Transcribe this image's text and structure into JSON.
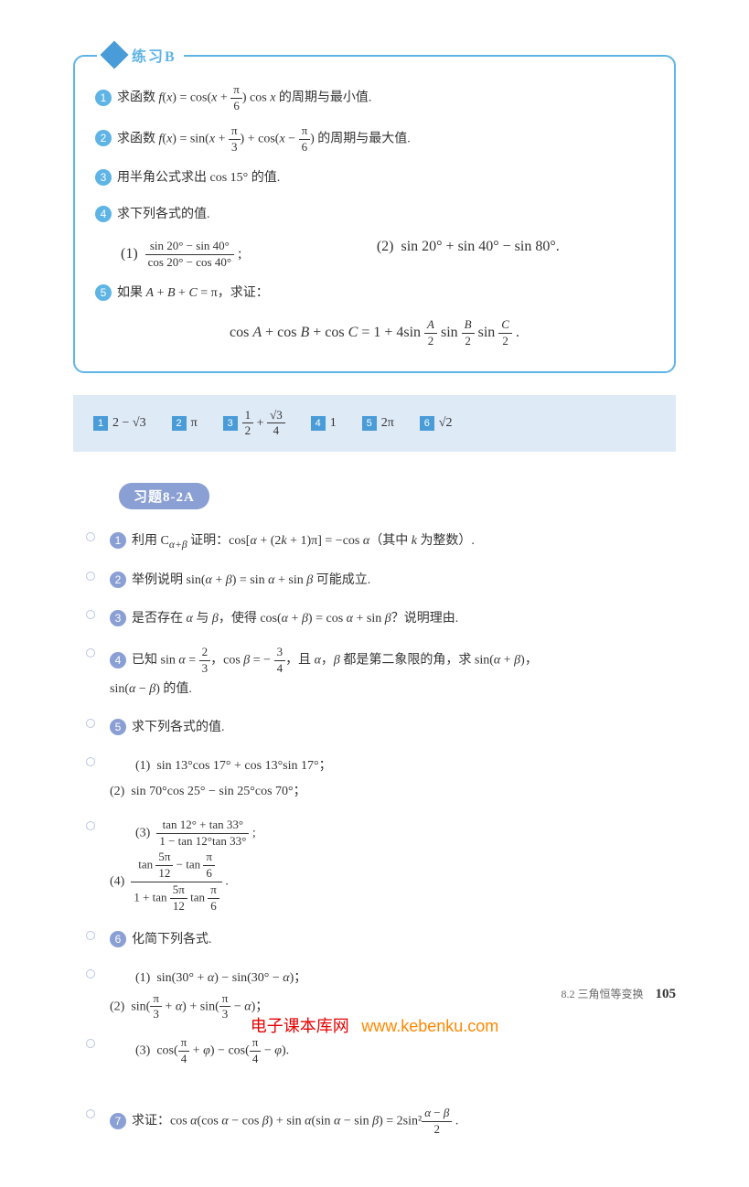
{
  "practiceB": {
    "title": "练习B",
    "items": [
      {
        "num": "1",
        "html": "求函数 <span class='math'>f</span>(<span class='math'>x</span>) = cos(<span class='math'>x</span> + <span class='frac'><span class='num'>π</span><span class='den'>6</span></span>) cos <span class='math'>x</span> 的周期与最小值."
      },
      {
        "num": "2",
        "html": "求函数 <span class='math'>f</span>(<span class='math'>x</span>) = sin(<span class='math'>x</span> + <span class='frac'><span class='num'>π</span><span class='den'>3</span></span>) + cos(<span class='math'>x</span> − <span class='frac'><span class='num'>π</span><span class='den'>6</span></span>) 的周期与最大值."
      },
      {
        "num": "3",
        "html": "用半角公式求出 cos 15° 的值."
      },
      {
        "num": "4",
        "html": "求下列各式的值.",
        "sub": [
          "(1) &nbsp;<span class='frac'><span class='num'>sin 20° − sin 40°</span><span class='den'>cos 20° − cos 40°</span></span> ;",
          "(2) &nbsp;sin 20° + sin 40° − sin 80°."
        ]
      },
      {
        "num": "5",
        "html": "如果 <span class='math'>A</span> + <span class='math'>B</span> + <span class='math'>C</span> = π，求证：",
        "center": "cos <span class='math'>A</span> + cos <span class='math'>B</span> + cos <span class='math'>C</span> = 1 + 4sin <span class='frac'><span class='num'><span class='math'>A</span></span><span class='den'>2</span></span> sin <span class='frac'><span class='num'><span class='math'>B</span></span><span class='den'>2</span></span> sin <span class='frac'><span class='num'><span class='math'>C</span></span><span class='den'>2</span></span> ."
      }
    ]
  },
  "answers": {
    "items": [
      {
        "num": "1",
        "html": "2 − <span class='sqrt'>√3</span>"
      },
      {
        "num": "2",
        "html": "π"
      },
      {
        "num": "3",
        "html": "<span class='frac'><span class='num'>1</span><span class='den'>2</span></span> + <span class='frac'><span class='num'><span class='sqrt'>√3</span></span><span class='den'>4</span></span>"
      },
      {
        "num": "4",
        "html": "1"
      },
      {
        "num": "5",
        "html": "2π"
      },
      {
        "num": "6",
        "html": "<span class='sqrt'>√2</span>"
      }
    ]
  },
  "exercise": {
    "title": "习题8-2A",
    "items": [
      {
        "num": "1",
        "html": "利用 C<sub><span class='math'>α+β</span></sub> 证明：cos[<span class='math'>α</span> + (2<span class='math'>k</span> + 1)π] = −cos <span class='math'>α</span>（其中 <span class='math'>k</span> 为整数）."
      },
      {
        "num": "2",
        "html": "举例说明 sin(<span class='math'>α</span> + <span class='math'>β</span>) = sin <span class='math'>α</span> + sin <span class='math'>β</span> 可能成立."
      },
      {
        "num": "3",
        "html": "是否存在 <span class='math'>α</span> 与 <span class='math'>β</span>，使得 cos(<span class='math'>α</span> + <span class='math'>β</span>) = cos <span class='math'>α</span> + sin <span class='math'>β</span>？说明理由."
      },
      {
        "num": "4",
        "html": "已知 sin <span class='math'>α</span> = <span class='frac'><span class='num'>2</span><span class='den'>3</span></span>，cos <span class='math'>β</span> = − <span class='frac'><span class='num'>3</span><span class='den'>4</span></span>，且 <span class='math'>α</span>，<span class='math'>β</span> 都是第二象限的角，求 sin(<span class='math'>α</span> + <span class='math'>β</span>)，<br><span style='margin-left:0'>sin(<span class='math'>α</span> − <span class='math'>β</span>) 的值.</span>"
      },
      {
        "num": "5",
        "html": "求下列各式的值.",
        "sub2": [
          {
            "l": "(1) &nbsp;sin 13°cos 17° + cos 13°sin 17°；",
            "r": "(2) &nbsp;sin 70°cos 25° − sin 25°cos 70°；"
          },
          {
            "l": "(3) &nbsp;<span class='frac'><span class='num'>tan 12° + tan 33°</span><span class='den'>1 − tan 12°tan 33°</span></span> ;",
            "r": "(4) &nbsp;<span class='frac'><span class='num'>tan <span class='frac'><span class='num'>5π</span><span class='den'>12</span></span> − tan <span class='frac'><span class='num'>π</span><span class='den'>6</span></span></span><span class='den'>1 + tan <span class='frac'><span class='num'>5π</span><span class='den'>12</span></span> tan <span class='frac'><span class='num'>π</span><span class='den'>6</span></span></span></span> ."
          }
        ]
      },
      {
        "num": "6",
        "html": "化简下列各式.",
        "sub2": [
          {
            "l": "(1) &nbsp;sin(30° + <span class='math'>α</span>) − sin(30° − <span class='math'>α</span>)；",
            "r": "(2) &nbsp;sin(<span class='frac'><span class='num'>π</span><span class='den'>3</span></span> + <span class='math'>α</span>) + sin(<span class='frac'><span class='num'>π</span><span class='den'>3</span></span> − <span class='math'>α</span>)；"
          },
          {
            "l": "(3) &nbsp;cos(<span class='frac'><span class='num'>π</span><span class='den'>4</span></span> + <span class='math'>φ</span>) − cos(<span class='frac'><span class='num'>π</span><span class='den'>4</span></span> − <span class='math'>φ</span>).",
            "r": ""
          }
        ]
      },
      {
        "num": "7",
        "html": "求证：cos <span class='math'>α</span>(cos <span class='math'>α</span> − cos <span class='math'>β</span>) + sin <span class='math'>α</span>(sin <span class='math'>α</span> − sin <span class='math'>β</span>) = 2sin²<span class='frac'><span class='num'><span class='math'>α</span> − <span class='math'>β</span></span><span class='den'>2</span></span> ."
      }
    ]
  },
  "footer": {
    "section": "8.2 三角恒等变换",
    "page": "105"
  },
  "watermark": {
    "text1": "电子课本库网",
    "text2": "www.kebenku.com"
  },
  "colors": {
    "practice_border": "#5fb4e6",
    "practice_circle": "#5fb4e6",
    "answer_bg": "#dfeaf7",
    "answer_square": "#4a9cd8",
    "exercise_header": "#8a9fd4",
    "exercise_circle": "#8a9fd4",
    "bullet_ring": "#b8c5e6"
  }
}
